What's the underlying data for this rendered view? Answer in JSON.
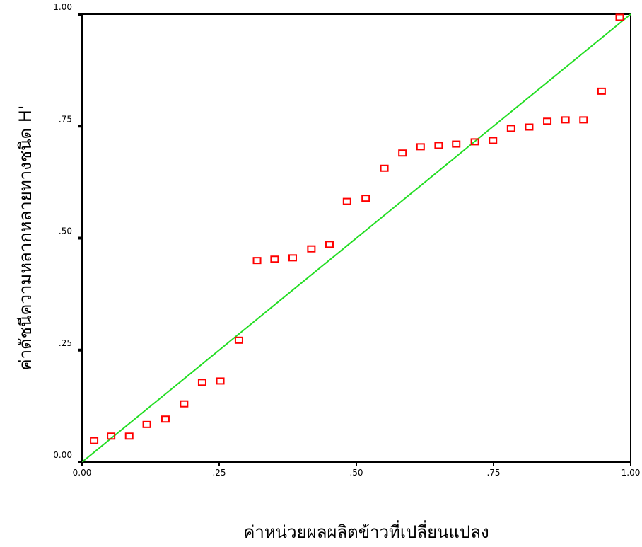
{
  "colors": {
    "background": "#ffffff",
    "frame": "#000000",
    "point": "#ff0000",
    "reference_line": "#22dd22",
    "text": "#000000"
  },
  "chart_data": {
    "type": "scatter",
    "title": "",
    "xlabel": "ค่าหน่วยผลผลิตข้าวที่เปลี่ยนแปลง",
    "ylabel": "ค่าดัชนีความหลากหลายทางชนิด H'",
    "xlim": [
      0,
      1
    ],
    "ylim": [
      0,
      1
    ],
    "x_ticks": [
      {
        "value": 0,
        "label": "0.00"
      },
      {
        "value": 0.25,
        "label": ".25"
      },
      {
        "value": 0.5,
        "label": ".50"
      },
      {
        "value": 0.75,
        "label": ".75"
      },
      {
        "value": 1,
        "label": "1.00"
      }
    ],
    "y_ticks": [
      {
        "value": 0,
        "label": "0.00"
      },
      {
        "value": 0.25,
        "label": ".25"
      },
      {
        "value": 0.5,
        "label": ".50"
      },
      {
        "value": 0.75,
        "label": ".75"
      },
      {
        "value": 1,
        "label": "1.00"
      }
    ],
    "grid": false,
    "marker": "hollow-square",
    "reference_line": {
      "from": [
        0,
        0
      ],
      "to": [
        1,
        1
      ]
    },
    "points": [
      {
        "x": 0.022,
        "y": 0.048
      },
      {
        "x": 0.053,
        "y": 0.058
      },
      {
        "x": 0.086,
        "y": 0.058
      },
      {
        "x": 0.118,
        "y": 0.084
      },
      {
        "x": 0.152,
        "y": 0.096
      },
      {
        "x": 0.186,
        "y": 0.13
      },
      {
        "x": 0.219,
        "y": 0.178
      },
      {
        "x": 0.252,
        "y": 0.181
      },
      {
        "x": 0.286,
        "y": 0.272
      },
      {
        "x": 0.319,
        "y": 0.45
      },
      {
        "x": 0.351,
        "y": 0.453
      },
      {
        "x": 0.384,
        "y": 0.456
      },
      {
        "x": 0.418,
        "y": 0.476
      },
      {
        "x": 0.451,
        "y": 0.486
      },
      {
        "x": 0.483,
        "y": 0.582
      },
      {
        "x": 0.517,
        "y": 0.589
      },
      {
        "x": 0.551,
        "y": 0.656
      },
      {
        "x": 0.584,
        "y": 0.69
      },
      {
        "x": 0.617,
        "y": 0.704
      },
      {
        "x": 0.65,
        "y": 0.707
      },
      {
        "x": 0.682,
        "y": 0.71
      },
      {
        "x": 0.716,
        "y": 0.715
      },
      {
        "x": 0.749,
        "y": 0.718
      },
      {
        "x": 0.782,
        "y": 0.745
      },
      {
        "x": 0.815,
        "y": 0.748
      },
      {
        "x": 0.848,
        "y": 0.761
      },
      {
        "x": 0.881,
        "y": 0.764
      },
      {
        "x": 0.914,
        "y": 0.764
      },
      {
        "x": 0.947,
        "y": 0.828
      },
      {
        "x": 0.98,
        "y": 0.993
      }
    ]
  }
}
